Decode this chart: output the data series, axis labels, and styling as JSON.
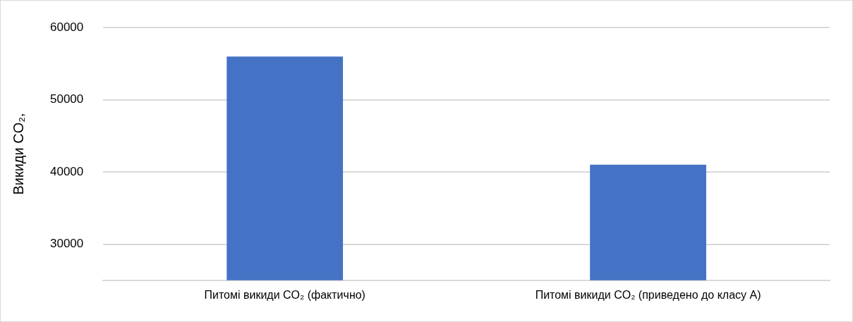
{
  "chart_data": {
    "type": "bar",
    "ylabel": "Викиди CO₂,",
    "categories": [
      "Питомі викиди CO₂ (фактично)",
      "Питомі викиди CO₂ (приведено до класу A)"
    ],
    "values": [
      56000,
      41000
    ],
    "color": "#4472c4",
    "ylim": [
      25000,
      60000
    ],
    "yticks": [
      30000,
      40000,
      50000,
      60000
    ],
    "grid": "y",
    "legend": false
  }
}
